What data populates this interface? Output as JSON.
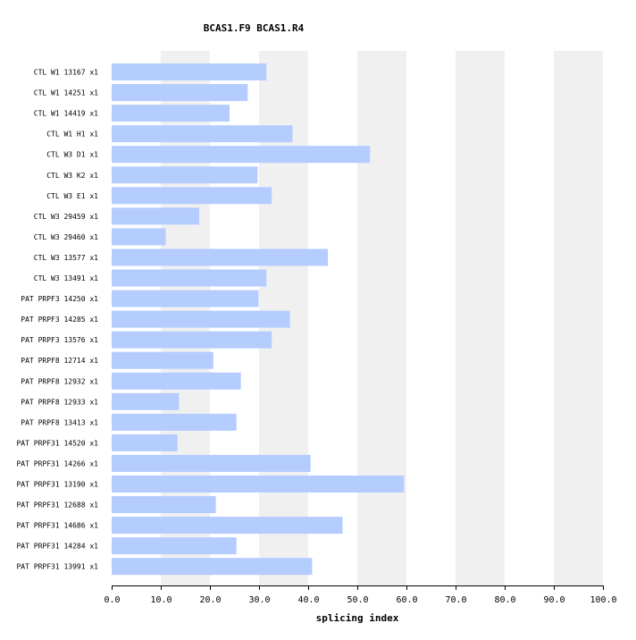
{
  "chart_data": {
    "type": "bar",
    "orientation": "horizontal",
    "title": "BCAS1.F9  BCAS1.R4",
    "xlabel": "splicing index",
    "ylabel": "",
    "xlim": [
      0,
      100
    ],
    "xticks": [
      "0.0",
      "10.0",
      "20.0",
      "30.0",
      "40.0",
      "50.0",
      "60.0",
      "70.0",
      "80.0",
      "90.0",
      "100.0"
    ],
    "grid": "alternating vertical bands",
    "categories": [
      "CTL W1 13167 x1",
      "CTL W1 14251 x1",
      "CTL W1 14419 x1",
      "CTL W1 H1 x1",
      "CTL W3 D1 x1",
      "CTL W3 K2 x1",
      "CTL W3 E1 x1",
      "CTL W3 29459 x1",
      "CTL W3 29460 x1",
      "CTL W3 13577 x1",
      "CTL W3 13491 x1",
      "PAT PRPF3 14250 x1",
      "PAT PRPF3 14285 x1",
      "PAT PRPF3 13576 x1",
      "PAT PRPF8 12714 x1",
      "PAT PRPF8 12932 x1",
      "PAT PRPF8 12933 x1",
      "PAT PRPF8 13413 x1",
      "PAT PRPF31 14520 x1",
      "PAT PRPF31 14266 x1",
      "PAT PRPF31 13190 x1",
      "PAT PRPF31 12688 x1",
      "PAT PRPF31 14686 x1",
      "PAT PRPF31 14284 x1",
      "PAT PRPF31 13991 x1"
    ],
    "values": [
      31.5,
      27.7,
      24.0,
      36.8,
      52.6,
      29.7,
      32.6,
      17.8,
      11.0,
      44.0,
      31.5,
      29.9,
      36.3,
      32.6,
      20.7,
      26.3,
      13.7,
      25.4,
      13.4,
      40.5,
      59.5,
      21.2,
      47.0,
      25.4,
      40.8
    ],
    "bar_color": "#b5ccff",
    "band_color": "#f0f0f0"
  }
}
